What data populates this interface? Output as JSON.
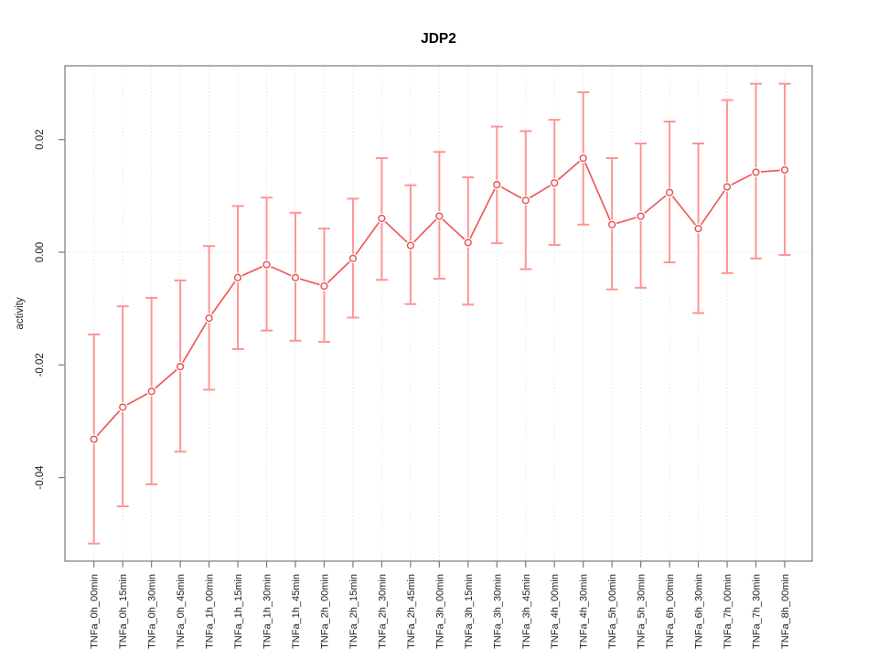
{
  "chart_data": {
    "type": "line",
    "title": "JDP2",
    "xlabel": "",
    "ylabel": "activity",
    "legend": "none",
    "grid": "vertical dotted gridline at every category; horizontal dotted line at y=0",
    "point_marker": "open-circle",
    "error_bars": true,
    "ylim": [
      -0.055,
      0.033
    ],
    "yticks": {
      "values": [
        0.02,
        0.0,
        -0.02,
        -0.04
      ],
      "labels": [
        "0.02",
        "0.00",
        "-0.02",
        "-0.04"
      ]
    },
    "categories": [
      "TNFa_0h_00min",
      "TNFa_0h_15min",
      "TNFa_0h_30min",
      "TNFa_0h_45min",
      "TNFa_1h_00min",
      "TNFa_1h_15min",
      "TNFa_1h_30min",
      "TNFa_1h_45min",
      "TNFa_2h_00min",
      "TNFa_2h_15min",
      "TNFa_2h_30min",
      "TNFa_2h_45min",
      "TNFa_3h_00min",
      "TNFa_3h_15min",
      "TNFa_3h_30min",
      "TNFa_3h_45min",
      "TNFa_4h_00min",
      "TNFa_4h_30min",
      "TNFa_5h_00min",
      "TNFa_5h_30min",
      "TNFa_6h_00min",
      "TNFa_6h_30min",
      "TNFa_7h_00min",
      "TNFa_7h_30min",
      "TNFa_8h_00min"
    ],
    "series": [
      {
        "name": "activity",
        "values": [
          -0.0332,
          -0.0275,
          -0.0247,
          -0.0203,
          -0.0117,
          -0.0045,
          -0.0022,
          -0.0045,
          -0.006,
          -0.0011,
          0.006,
          0.0012,
          0.0064,
          0.0017,
          0.012,
          0.0092,
          0.0123,
          0.0167,
          0.0049,
          0.0064,
          0.0106,
          0.0042,
          0.0116,
          0.0142,
          0.0146
        ],
        "error_high": [
          -0.0146,
          -0.0096,
          -0.0081,
          -0.005,
          0.0011,
          0.0082,
          0.0097,
          0.007,
          0.0042,
          0.0095,
          0.0167,
          0.0119,
          0.0178,
          0.0133,
          0.0223,
          0.0215,
          0.0235,
          0.0284,
          0.0167,
          0.0193,
          0.0232,
          0.0193,
          0.027,
          0.0299,
          0.0299
        ],
        "error_low": [
          -0.0517,
          -0.0451,
          -0.0412,
          -0.0354,
          -0.0244,
          -0.0172,
          -0.0139,
          -0.0157,
          -0.0159,
          -0.0116,
          -0.0049,
          -0.0092,
          -0.0047,
          -0.0093,
          0.0016,
          -0.003,
          0.0013,
          0.0049,
          -0.0066,
          -0.0063,
          -0.0018,
          -0.0108,
          -0.0037,
          -0.0011,
          -0.0005
        ]
      }
    ],
    "colors": {
      "series_line": "#f05a5a",
      "point_stroke": "#e84d4d",
      "error_bar": "#ff9494",
      "gridline": "#e0e0e0",
      "axis": "#7a7a7a",
      "tick_text": "#222222",
      "title_text": "#000000",
      "background": "#ffffff"
    }
  }
}
